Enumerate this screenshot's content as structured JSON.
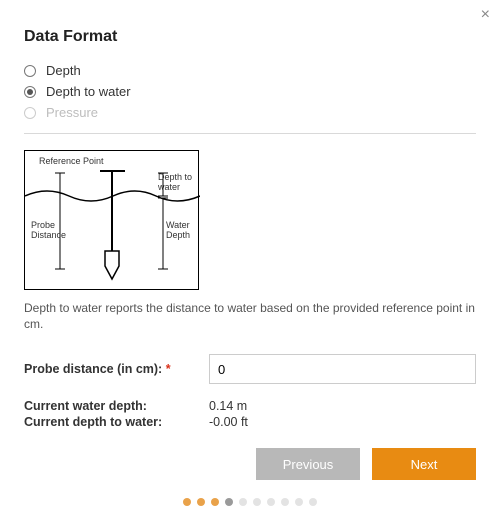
{
  "close_icon_glyph": "×",
  "title": "Data Format",
  "options": {
    "opt0": {
      "label": "Depth",
      "selected": false,
      "disabled": false
    },
    "opt1": {
      "label": "Depth to water",
      "selected": true,
      "disabled": false
    },
    "opt2": {
      "label": "Pressure",
      "selected": false,
      "disabled": true
    }
  },
  "diagram": {
    "reference_point": "Reference Point",
    "depth_to_water": "Depth to\nwater",
    "probe_distance": "Probe\nDistance",
    "water_depth": "Water\nDepth",
    "border_color": "#000000"
  },
  "description": "Depth to water reports the distance to water based on the provided reference point in cm.",
  "field": {
    "label": "Probe distance (in cm):",
    "required_marker": "*",
    "value": "0"
  },
  "stats": {
    "depth_label": "Current water depth:",
    "depth_value": "0.14 m",
    "dtw_label": "Current depth to water:",
    "dtw_value": "-0.00 ft"
  },
  "buttons": {
    "previous": "Previous",
    "next": "Next",
    "prev_bg": "#b8b8b8",
    "next_bg": "#e88b12"
  },
  "progress": {
    "total": 10,
    "active_color": "#e9a24a",
    "current_color": "#9a9a9a",
    "inactive_color": "#e3e3e3",
    "states": [
      "active",
      "active",
      "active",
      "current",
      "inactive",
      "inactive",
      "inactive",
      "inactive",
      "inactive",
      "inactive"
    ]
  }
}
